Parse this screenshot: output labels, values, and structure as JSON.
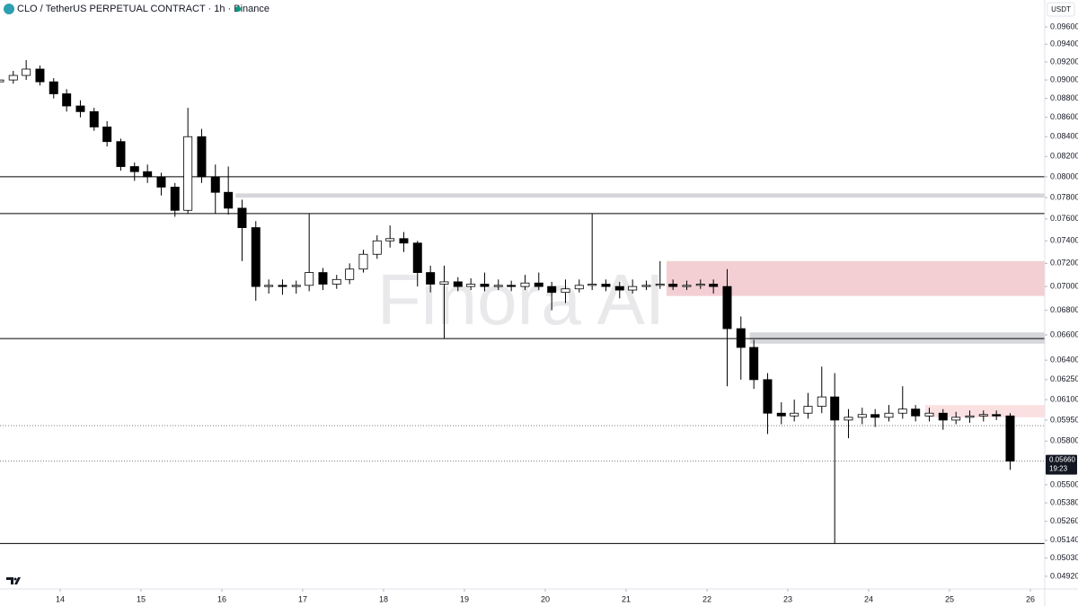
{
  "chart_data": {
    "type": "candlestick",
    "title": "CLO / TetherUS PERPETUAL CONTRACT · 1h · Binance",
    "currency": "USDT",
    "watermark": "Finora AI",
    "log_scale": true,
    "up_color": "#ffffff",
    "down_color": "#000000",
    "wick_color": "#000000",
    "xlim": [
      13.256,
      26.178
    ],
    "xticks": [
      14,
      15,
      16,
      17,
      18,
      19,
      20,
      21,
      22,
      23,
      24,
      25,
      26
    ],
    "ylim": [
      0.0485,
      0.0992
    ],
    "yticks": [
      {
        "value": 0.096,
        "label": "0.09600"
      },
      {
        "value": 0.094,
        "label": "0.09400"
      },
      {
        "value": 0.092,
        "label": "0.09200"
      },
      {
        "value": 0.09,
        "label": "0.09000"
      },
      {
        "value": 0.088,
        "label": "0.08800"
      },
      {
        "value": 0.086,
        "label": "0.08600"
      },
      {
        "value": 0.084,
        "label": "0.08400"
      },
      {
        "value": 0.082,
        "label": "0.08200"
      },
      {
        "value": 0.08,
        "label": "0.08000"
      },
      {
        "value": 0.078,
        "label": "0.07800"
      },
      {
        "value": 0.076,
        "label": "0.07600"
      },
      {
        "value": 0.074,
        "label": "0.07400"
      },
      {
        "value": 0.072,
        "label": "0.07200"
      },
      {
        "value": 0.07,
        "label": "0.07000"
      },
      {
        "value": 0.068,
        "label": "0.06800"
      },
      {
        "value": 0.066,
        "label": "0.06600"
      },
      {
        "value": 0.064,
        "label": "0.06400"
      },
      {
        "value": 0.0625,
        "label": "0.06250"
      },
      {
        "value": 0.061,
        "label": "0.06100"
      },
      {
        "value": 0.0595,
        "label": "0.05950"
      },
      {
        "value": 0.058,
        "label": "0.05800"
      },
      {
        "value": 0.055,
        "label": "0.05500"
      },
      {
        "value": 0.0538,
        "label": "0.05380"
      },
      {
        "value": 0.0526,
        "label": "0.05260"
      },
      {
        "value": 0.0514,
        "label": "0.05140"
      },
      {
        "value": 0.0503,
        "label": "0.05030"
      },
      {
        "value": 0.0492,
        "label": "0.04920"
      }
    ],
    "x": [
      13.25,
      13.42,
      13.58,
      13.75,
      13.92,
      14.08,
      14.25,
      14.42,
      14.58,
      14.75,
      14.92,
      15.08,
      15.25,
      15.42,
      15.58,
      15.75,
      15.92,
      16.08,
      16.25,
      16.42,
      16.58,
      16.75,
      16.92,
      17.08,
      17.25,
      17.42,
      17.58,
      17.75,
      17.92,
      18.08,
      18.25,
      18.42,
      18.58,
      18.75,
      18.92,
      19.08,
      19.25,
      19.42,
      19.58,
      19.75,
      19.92,
      20.08,
      20.25,
      20.42,
      20.58,
      20.75,
      20.92,
      21.08,
      21.25,
      21.42,
      21.58,
      21.75,
      21.92,
      22.08,
      22.25,
      22.42,
      22.58,
      22.75,
      22.92,
      23.08,
      23.25,
      23.42,
      23.58,
      23.75,
      23.92,
      24.08,
      24.25,
      24.42,
      24.58,
      24.75,
      24.92,
      25.08,
      25.25,
      25.42,
      25.58,
      25.75
    ],
    "open": [
      0.0898,
      0.09,
      0.0905,
      0.0912,
      0.0898,
      0.0885,
      0.0872,
      0.0866,
      0.085,
      0.0835,
      0.081,
      0.0805,
      0.08,
      0.079,
      0.0768,
      0.084,
      0.08,
      0.0785,
      0.077,
      0.0752,
      0.07,
      0.0701,
      0.07,
      0.0701,
      0.0712,
      0.0702,
      0.0706,
      0.0715,
      0.0728,
      0.074,
      0.0742,
      0.0738,
      0.0712,
      0.0702,
      0.0704,
      0.07,
      0.0702,
      0.07,
      0.0701,
      0.07,
      0.0703,
      0.07,
      0.0695,
      0.0698,
      0.0701,
      0.0702,
      0.07,
      0.0697,
      0.07,
      0.0701,
      0.0702,
      0.07,
      0.0701,
      0.0702,
      0.07,
      0.0665,
      0.065,
      0.0625,
      0.06,
      0.0598,
      0.06,
      0.0605,
      0.0612,
      0.0595,
      0.0597,
      0.0599,
      0.0597,
      0.06,
      0.0603,
      0.0598,
      0.06,
      0.0595,
      0.0597,
      0.0598,
      0.0599,
      0.0598
    ],
    "high": [
      0.0906,
      0.091,
      0.0922,
      0.0916,
      0.0902,
      0.089,
      0.0878,
      0.087,
      0.0856,
      0.0838,
      0.0814,
      0.0812,
      0.0804,
      0.0794,
      0.087,
      0.0848,
      0.0812,
      0.081,
      0.0778,
      0.0758,
      0.0706,
      0.0706,
      0.0705,
      0.0765,
      0.0716,
      0.071,
      0.072,
      0.0732,
      0.0745,
      0.0754,
      0.0748,
      0.074,
      0.0718,
      0.0718,
      0.0708,
      0.0707,
      0.0712,
      0.0706,
      0.0705,
      0.071,
      0.0712,
      0.0704,
      0.0706,
      0.0706,
      0.0765,
      0.0706,
      0.0704,
      0.0706,
      0.0705,
      0.0722,
      0.0706,
      0.0705,
      0.0706,
      0.0706,
      0.0715,
      0.0675,
      0.0656,
      0.063,
      0.0608,
      0.061,
      0.0615,
      0.0635,
      0.063,
      0.0603,
      0.0604,
      0.0603,
      0.0606,
      0.062,
      0.0606,
      0.0604,
      0.0603,
      0.0601,
      0.0602,
      0.0602,
      0.0602,
      0.06
    ],
    "low": [
      0.0894,
      0.0896,
      0.09,
      0.0894,
      0.088,
      0.0866,
      0.086,
      0.0846,
      0.083,
      0.0806,
      0.0796,
      0.0794,
      0.0782,
      0.0762,
      0.0765,
      0.0794,
      0.0765,
      0.0764,
      0.0722,
      0.0688,
      0.0694,
      0.0693,
      0.0694,
      0.0696,
      0.0697,
      0.0698,
      0.0702,
      0.0712,
      0.0724,
      0.0734,
      0.073,
      0.07,
      0.0695,
      0.0657,
      0.0696,
      0.0697,
      0.0696,
      0.0697,
      0.0696,
      0.0697,
      0.0697,
      0.068,
      0.0686,
      0.0695,
      0.0697,
      0.0696,
      0.069,
      0.0694,
      0.0697,
      0.0698,
      0.0697,
      0.0697,
      0.0698,
      0.0694,
      0.062,
      0.0625,
      0.0618,
      0.0585,
      0.0592,
      0.0594,
      0.0596,
      0.06,
      0.0512,
      0.0582,
      0.0592,
      0.059,
      0.0594,
      0.0596,
      0.0594,
      0.0594,
      0.0588,
      0.0592,
      0.0593,
      0.0594,
      0.0595,
      0.056
    ],
    "close": [
      0.09,
      0.0905,
      0.0912,
      0.0898,
      0.0885,
      0.0872,
      0.0866,
      0.085,
      0.0835,
      0.081,
      0.0805,
      0.08,
      0.079,
      0.0768,
      0.084,
      0.08,
      0.0785,
      0.077,
      0.0752,
      0.07,
      0.0701,
      0.07,
      0.0701,
      0.0712,
      0.0702,
      0.0706,
      0.0715,
      0.0728,
      0.074,
      0.0742,
      0.0738,
      0.0712,
      0.0702,
      0.0704,
      0.07,
      0.0702,
      0.07,
      0.0701,
      0.07,
      0.0703,
      0.07,
      0.0695,
      0.0698,
      0.0701,
      0.0702,
      0.07,
      0.0697,
      0.07,
      0.0701,
      0.0702,
      0.07,
      0.0701,
      0.0702,
      0.07,
      0.0665,
      0.065,
      0.0625,
      0.06,
      0.0598,
      0.06,
      0.0605,
      0.0612,
      0.0595,
      0.0597,
      0.0599,
      0.0597,
      0.06,
      0.0603,
      0.0598,
      0.06,
      0.0595,
      0.0597,
      0.0598,
      0.0599,
      0.0598,
      0.0566
    ],
    "levels": [
      0.08,
      0.0765,
      0.0657,
      0.0512
    ],
    "dotted_levels": [
      0.0591,
      0.0566
    ],
    "zones": [
      {
        "from": 16.17,
        "top": 0.0784,
        "bottom": 0.078,
        "color": "#d5d6da"
      },
      {
        "from": 21.5,
        "top": 0.0722,
        "bottom": 0.0692,
        "color": "#f3cfd3"
      },
      {
        "from": 22.53,
        "top": 0.0662,
        "bottom": 0.0653,
        "color": "#d5d6da"
      },
      {
        "from": 24.7,
        "top": 0.0606,
        "bottom": 0.0597,
        "color": "#fbe0e2"
      }
    ],
    "last_price": {
      "value": 0.0566,
      "label": "0.05660",
      "countdown": "19:23"
    }
  }
}
